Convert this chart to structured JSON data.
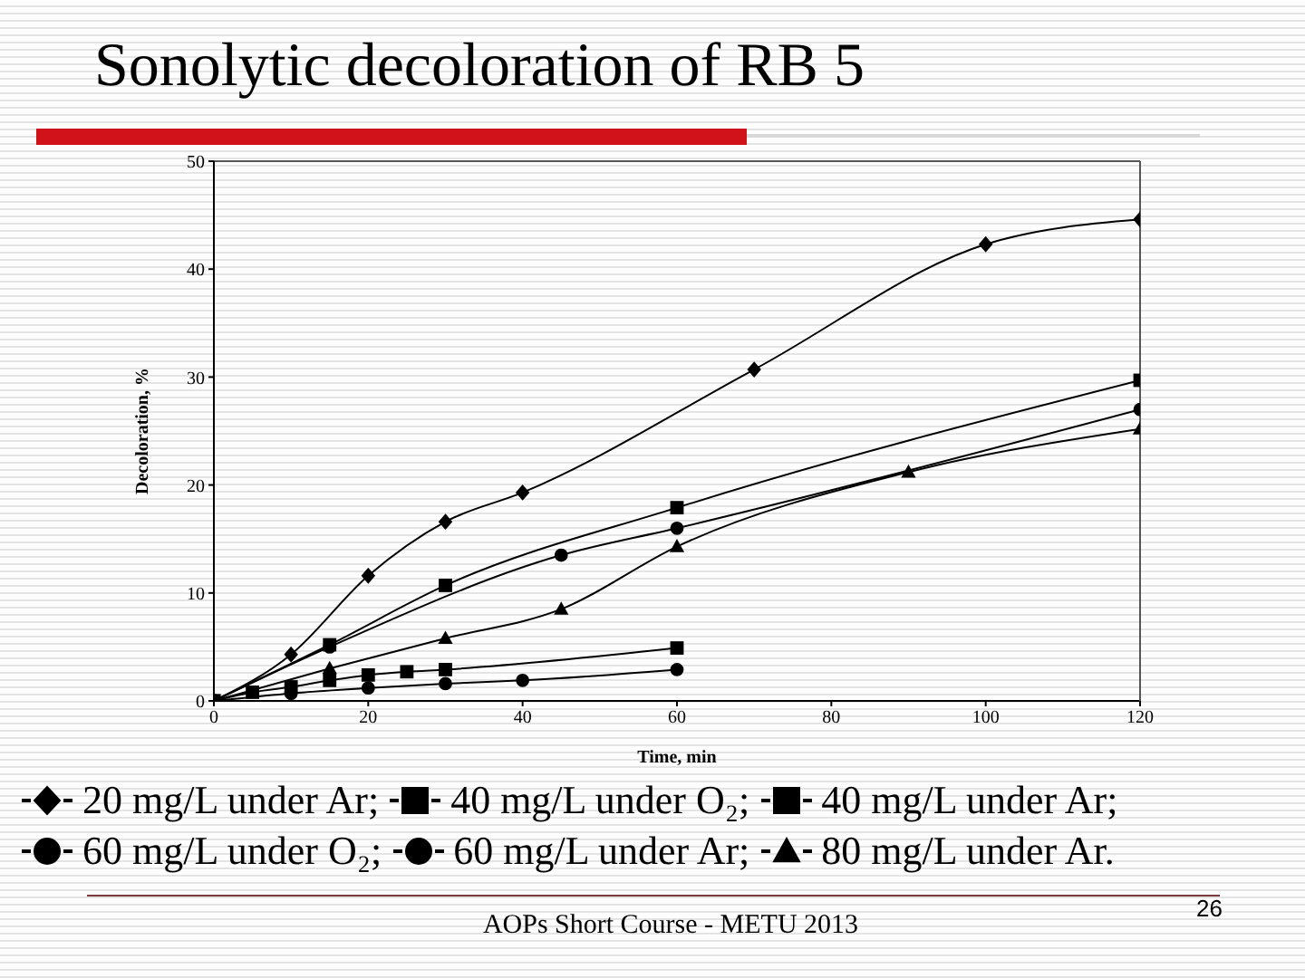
{
  "chart_data": {
    "type": "line",
    "title": "Sonolytic decoloration of RB 5",
    "xlabel": "Time, min",
    "ylabel": "Decoloration, %",
    "xlim": [
      0,
      120
    ],
    "xticks": [
      0,
      20,
      40,
      60,
      80,
      100,
      120
    ],
    "ylim": [
      0,
      50
    ],
    "yticks": [
      0,
      10,
      20,
      30,
      40,
      50
    ],
    "legend": "bottom",
    "annotations": [
      "AOPs Short Course - METU 2013",
      "26"
    ],
    "series": [
      {
        "name": "20 mg/L under Ar;",
        "color": "#000000",
        "marker": "diamond",
        "x": [
          0,
          10,
          20,
          30,
          40,
          70,
          100,
          120
        ],
        "values": [
          0,
          4.3,
          11.6,
          16.6,
          19.3,
          30.7,
          42.3,
          44.6
        ]
      },
      {
        "name": "40 mg/L under O₂;",
        "color": "#000000",
        "marker": "square",
        "x": [
          0,
          5,
          10,
          15,
          20,
          25,
          30,
          60
        ],
        "values": [
          0,
          0.8,
          1.3,
          1.9,
          2.4,
          2.7,
          2.9,
          4.9
        ]
      },
      {
        "name": "40 mg/L under Ar;",
        "color": "#000000",
        "marker": "square",
        "x": [
          0,
          15,
          30,
          60,
          120
        ],
        "values": [
          0,
          5.2,
          10.7,
          17.9,
          29.7
        ]
      },
      {
        "name": "60 mg/L under O₂;",
        "color": "#000000",
        "marker": "circle",
        "x": [
          0,
          10,
          20,
          30,
          40,
          60
        ],
        "values": [
          0,
          0.7,
          1.2,
          1.6,
          1.9,
          2.9
        ]
      },
      {
        "name": "60 mg/L under Ar;",
        "color": "#000000",
        "marker": "circle",
        "x": [
          0,
          15,
          45,
          60,
          120
        ],
        "values": [
          0,
          5,
          13.5,
          16,
          27
        ]
      },
      {
        "name": "80 mg/L under Ar.",
        "color": "#000000",
        "marker": "triangle",
        "x": [
          0,
          15,
          30,
          45,
          60,
          90,
          120
        ],
        "values": [
          0,
          3,
          5.8,
          8.5,
          14.3,
          21.2,
          25.2
        ]
      }
    ]
  }
}
